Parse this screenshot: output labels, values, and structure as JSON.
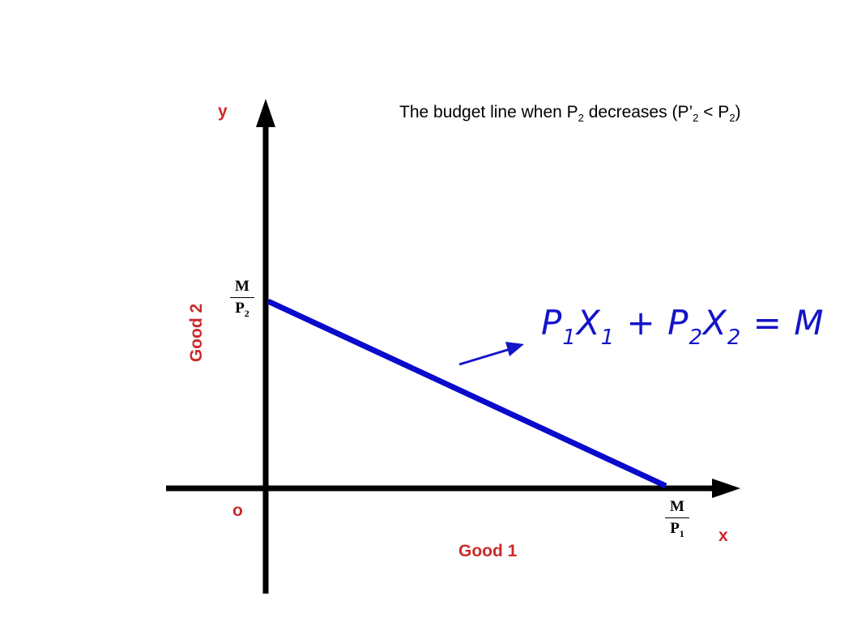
{
  "title": {
    "text_a": "The budget line when P",
    "sub_a": "2",
    "text_b": " decreases (P’",
    "sub_b": "2",
    "text_c": " <  P",
    "sub_c": "2",
    "text_d": ")"
  },
  "axes": {
    "y_letter": "y",
    "x_letter": "x",
    "origin": "o",
    "y_label": "Good 2",
    "x_label": "Good 1"
  },
  "intercepts": {
    "y": {
      "num": "M",
      "den": "P",
      "den_sub": "2"
    },
    "x": {
      "num": "M",
      "den": "P",
      "den_sub": "1"
    }
  },
  "equation": {
    "p1": "P",
    "s1": "1",
    "x1": "X",
    "s2": "1",
    "plus": " + ",
    "p2": "P",
    "s3": "2",
    "x2": "X",
    "s4": "2",
    "eq": " = M"
  },
  "colors": {
    "axis": "#000000",
    "line": "#0a0acc",
    "label": "#cc2a2a"
  }
}
